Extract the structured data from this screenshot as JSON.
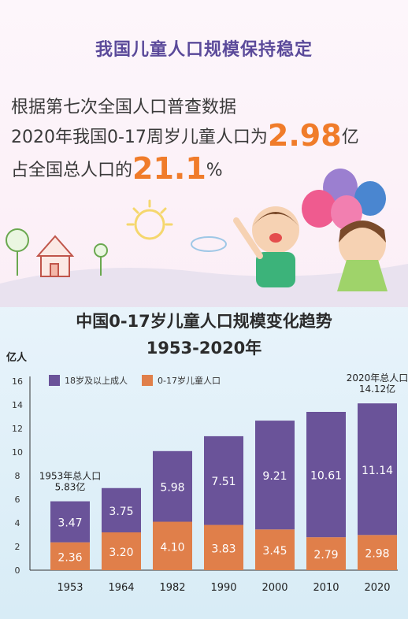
{
  "header": {
    "title": "我国儿童人口规模保持稳定"
  },
  "intro": {
    "line1": "根据第七次全国人口普查数据",
    "line2_prefix": "2020年我国0-17周岁儿童人口为",
    "line2_value": "2.98",
    "line2_unit": "亿",
    "line3_prefix": "占全国总人口的",
    "line3_value": "21.1",
    "line3_unit": "%"
  },
  "colors": {
    "adult": "#6a5399",
    "child": "#e07f4a",
    "accent": "#f07c2a",
    "title": "#5b4a9a"
  },
  "chart_data": {
    "type": "bar",
    "stacked": true,
    "title": "中国0-17岁儿童人口规模变化趋势",
    "subtitle": "1953-2020年",
    "ylabel": "亿人",
    "ylim": [
      0,
      16
    ],
    "yticks": [
      0,
      2,
      4,
      6,
      8,
      10,
      12,
      14,
      16
    ],
    "categories": [
      "1953",
      "1964",
      "1982",
      "1990",
      "2000",
      "2010",
      "2020"
    ],
    "series": [
      {
        "name": "0-17岁儿童人口",
        "values": [
          2.36,
          3.2,
          4.1,
          3.83,
          3.45,
          2.79,
          2.98
        ]
      },
      {
        "name": "18岁及以上成人",
        "values": [
          3.47,
          3.75,
          5.98,
          7.51,
          9.21,
          10.61,
          11.14
        ]
      }
    ],
    "value_labels": {
      "child": [
        "2.36",
        "3.20",
        "4.10",
        "3.83",
        "3.45",
        "2.79",
        "2.98"
      ],
      "adult": [
        "3.47",
        "3.75",
        "5.98",
        "7.51",
        "9.21",
        "10.61",
        "11.14"
      ]
    },
    "annotations": [
      {
        "category": "1953",
        "lines": [
          "1953年总人口",
          "5.83亿"
        ]
      },
      {
        "category": "2020",
        "lines": [
          "2020年总人口",
          "14.12亿"
        ]
      }
    ],
    "legend_position": "top-left"
  }
}
